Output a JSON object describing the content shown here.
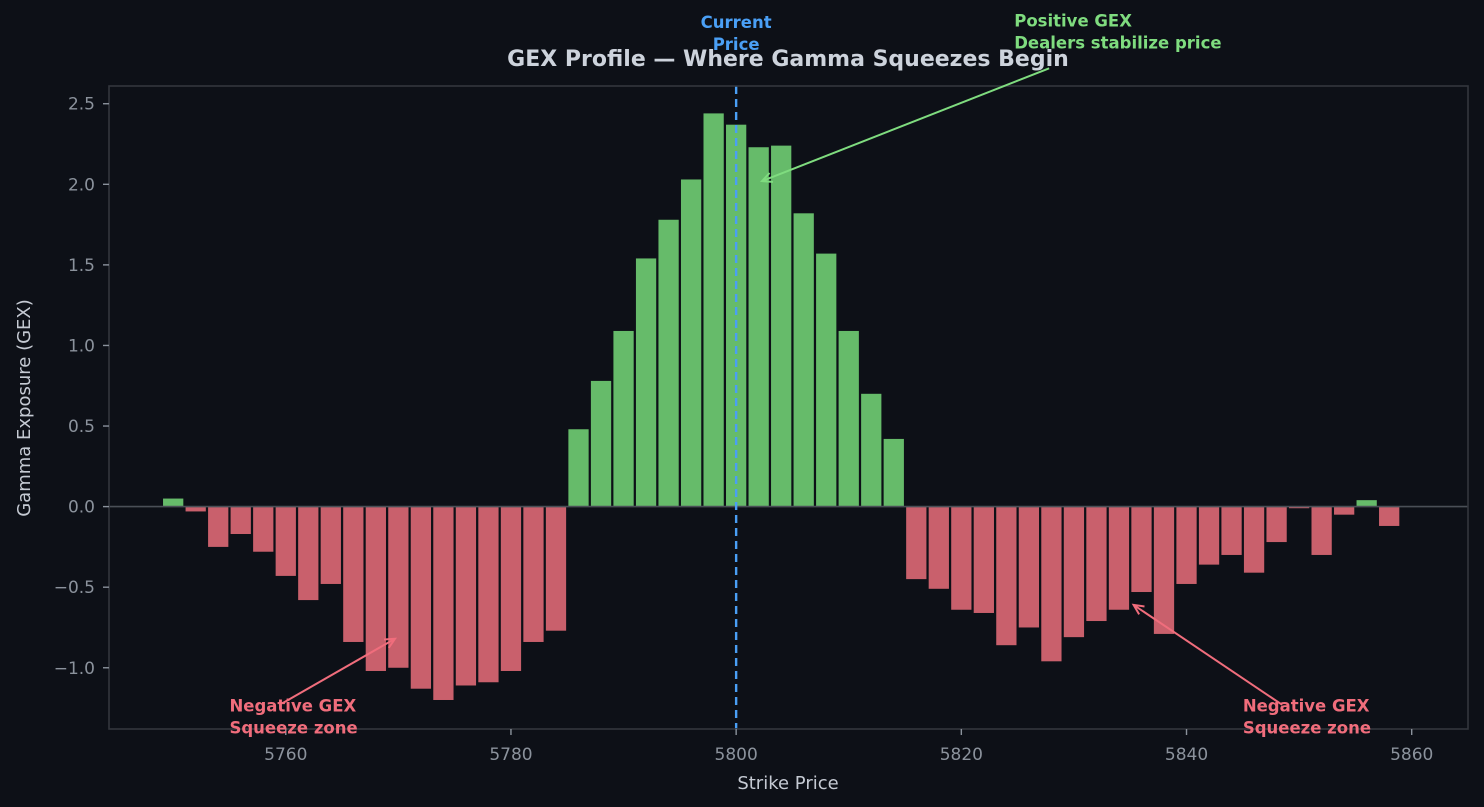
{
  "chart_data": {
    "type": "bar",
    "title": "GEX Profile — Where Gamma Squeezes Begin",
    "xlabel": "Strike Price",
    "ylabel": "Gamma Exposure (GEX)",
    "xlim": [
      5744.3,
      5865.0
    ],
    "ylim": [
      -1.38,
      2.61
    ],
    "x_ticks": [
      5760,
      5780,
      5800,
      5820,
      5840,
      5860
    ],
    "y_ticks": [
      -1.0,
      -0.5,
      0.0,
      0.5,
      1.0,
      1.5,
      2.0,
      2.5
    ],
    "y_tick_labels": [
      "−1.0",
      "−0.5",
      "0.0",
      "0.5",
      "1.0",
      "1.5",
      "2.0",
      "2.5"
    ],
    "grid": false,
    "bar_width": 1.8,
    "colors": {
      "positive": "#66bb6a",
      "negative": "#c9606c",
      "current_price_line": "#4a9ff5",
      "background": "#0d1017",
      "frame": "#33363d",
      "zero_line": "#4a4f57"
    },
    "strikes": [
      5750,
      5752,
      5754,
      5756,
      5758,
      5760,
      5762,
      5764,
      5766,
      5768,
      5770,
      5772,
      5774,
      5776,
      5778,
      5780,
      5782,
      5784,
      5786,
      5788,
      5790,
      5792,
      5794,
      5796,
      5798,
      5800,
      5802,
      5804,
      5806,
      5808,
      5810,
      5812,
      5814,
      5816,
      5818,
      5820,
      5822,
      5824,
      5826,
      5828,
      5830,
      5832,
      5834,
      5836,
      5838,
      5840,
      5842,
      5844,
      5846,
      5848,
      5850,
      5852,
      5854,
      5856,
      5858
    ],
    "values": [
      0.05,
      -0.03,
      -0.25,
      -0.17,
      -0.28,
      -0.43,
      -0.58,
      -0.48,
      -0.84,
      -1.02,
      -1.0,
      -1.13,
      -1.2,
      -1.11,
      -1.09,
      -1.02,
      -0.84,
      -0.77,
      0.48,
      0.78,
      1.09,
      1.54,
      1.78,
      2.03,
      2.44,
      2.37,
      2.23,
      2.24,
      1.82,
      1.57,
      1.09,
      0.7,
      0.42,
      -0.45,
      -0.51,
      -0.64,
      -0.66,
      -0.86,
      -0.75,
      -0.96,
      -0.81,
      -0.71,
      -0.64,
      -0.53,
      -0.79,
      -0.48,
      -0.36,
      -0.3,
      -0.41,
      -0.22,
      -0.01,
      -0.3,
      -0.05,
      0.04,
      -0.12
    ],
    "current_price": 5800,
    "annotations": [
      {
        "id": "current-price",
        "lines": [
          "Current",
          "Price"
        ],
        "color": "#4a9ff5",
        "text_x": 5800,
        "text_y": 2.97,
        "anchor": "middle"
      },
      {
        "id": "positive-gex",
        "lines": [
          "Positive GEX",
          "Dealers stabilize price"
        ],
        "color": "#7fdc7f",
        "text_x": 5824.7,
        "text_y": 2.98,
        "anchor": "start",
        "arrow_from": [
          5827.8,
          2.72
        ],
        "arrow_to": [
          5802.3,
          2.02
        ]
      },
      {
        "id": "negative-gex-left",
        "lines": [
          "Negative GEX",
          "Squeeze zone"
        ],
        "color": "#f06d7c",
        "text_x": 5755.0,
        "text_y": -1.27,
        "anchor": "start",
        "arrow_from": [
          5759.7,
          -1.22
        ],
        "arrow_to": [
          5769.7,
          -0.82
        ]
      },
      {
        "id": "negative-gex-right",
        "lines": [
          "Negative GEX",
          "Squeeze zone"
        ],
        "color": "#f06d7c",
        "text_x": 5845.0,
        "text_y": -1.27,
        "anchor": "start",
        "arrow_from": [
          5848.5,
          -1.23
        ],
        "arrow_to": [
          5835.3,
          -0.61
        ]
      }
    ]
  }
}
